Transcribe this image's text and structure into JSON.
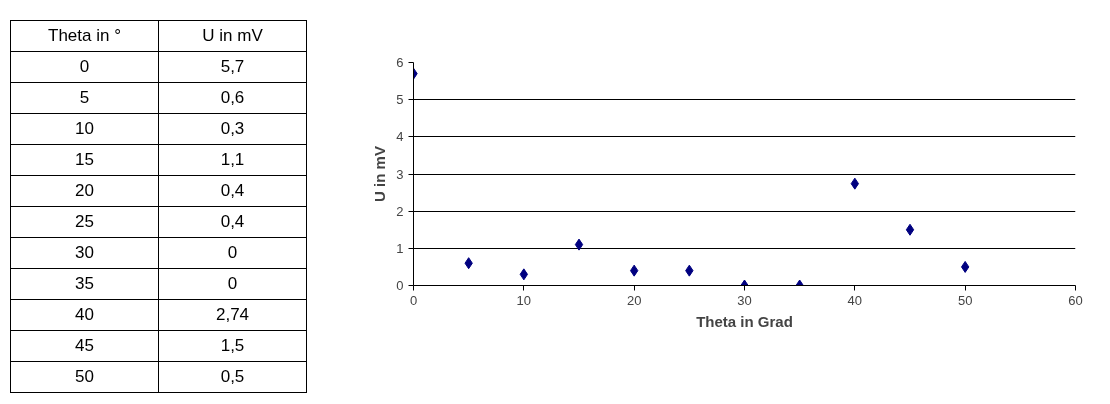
{
  "chart_data": {
    "type": "scatter",
    "xlabel": "Theta in Grad",
    "ylabel": "U in mV",
    "annotations": [
      "Theta in °",
      "U in mV",
      "0",
      "5",
      "10",
      "15",
      "20",
      "25",
      "30",
      "35",
      "40",
      "45",
      "50"
    ],
    "x": [
      0,
      5,
      10,
      15,
      20,
      25,
      30,
      35,
      40,
      45,
      50
    ],
    "series": [
      {
        "color": "#000080",
        "values": [
          5.7,
          0.6,
          0.3,
          1.1,
          0.4,
          0.4,
          0,
          0,
          2.74,
          1.5,
          0.5
        ]
      }
    ],
    "value_labels": [
      "5,7",
      "0,6",
      "0,3",
      "1,1",
      "0,4",
      "0,4",
      "0",
      "0",
      "2,74",
      "1,5",
      "0,5"
    ],
    "xlim": [
      0,
      60
    ],
    "xticks": [
      0,
      10,
      20,
      30,
      40,
      50,
      60
    ],
    "ylim": [
      0,
      6
    ],
    "yticks": [
      0,
      1,
      2,
      3,
      4,
      5,
      6
    ],
    "grid": "y",
    "marker": "diamond"
  }
}
